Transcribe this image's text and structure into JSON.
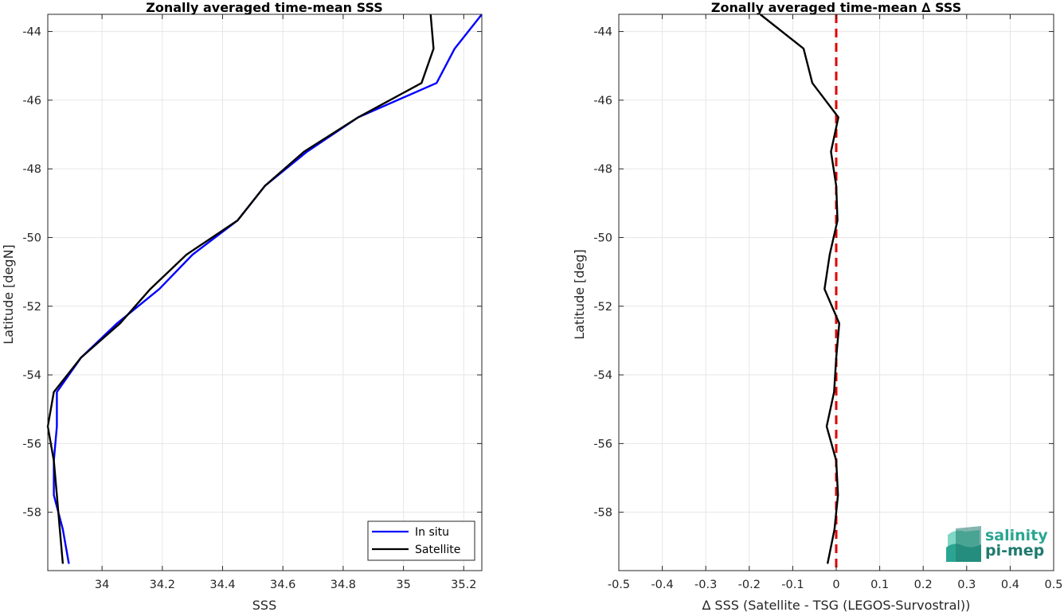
{
  "chart_data": [
    {
      "type": "line",
      "title": "Zonally averaged time-mean SSS",
      "xlabel": "SSS",
      "ylabel": "Latitude [degN]",
      "xlim": [
        33.82,
        35.26
      ],
      "ylim": [
        -59.7,
        -43.5
      ],
      "xticks": [
        34,
        34.2,
        34.4,
        34.6,
        34.8,
        35,
        35.2
      ],
      "xtick_labels": [
        "34",
        "34.2",
        "34.4",
        "34.6",
        "34.8",
        "35",
        "35.2"
      ],
      "yticks": [
        -44,
        -46,
        -48,
        -50,
        -52,
        -54,
        -56,
        -58
      ],
      "ytick_labels": [
        "-44",
        "-46",
        "-48",
        "-50",
        "-52",
        "-54",
        "-56",
        "-58"
      ],
      "grid": true,
      "legend": "bottom-right",
      "series": [
        {
          "name": "In situ",
          "color": "#0000ff",
          "x": [
            35.26,
            35.17,
            35.11,
            34.85,
            34.68,
            34.54,
            34.45,
            34.3,
            34.19,
            34.05,
            33.93,
            33.85,
            33.85,
            33.84,
            33.84,
            33.87,
            33.89
          ],
          "y": [
            -43.5,
            -44.5,
            -45.5,
            -46.5,
            -47.5,
            -48.5,
            -49.5,
            -50.5,
            -51.5,
            -52.5,
            -53.5,
            -54.5,
            -55.5,
            -56.5,
            -57.5,
            -58.5,
            -59.5
          ]
        },
        {
          "name": "Satellite",
          "color": "#000000",
          "x": [
            35.09,
            35.1,
            35.06,
            34.85,
            34.67,
            34.54,
            34.45,
            34.28,
            34.16,
            34.06,
            33.93,
            33.84,
            33.82,
            33.84,
            33.85,
            33.86,
            33.87
          ],
          "y": [
            -43.5,
            -44.5,
            -45.5,
            -46.5,
            -47.5,
            -48.5,
            -49.5,
            -50.5,
            -51.5,
            -52.5,
            -53.5,
            -54.5,
            -55.5,
            -56.5,
            -57.5,
            -58.5,
            -59.5
          ]
        }
      ]
    },
    {
      "type": "line",
      "title": "Zonally averaged time-mean ∆ SSS",
      "xlabel": "∆ SSS (Satellite - TSG (LEGOS-Survostral))",
      "ylabel": "Latitude [deg]",
      "xlim": [
        -0.5,
        0.5
      ],
      "ylim": [
        -59.7,
        -43.5
      ],
      "xticks": [
        -0.5,
        -0.4,
        -0.3,
        -0.2,
        -0.1,
        0,
        0.1,
        0.2,
        0.3,
        0.4,
        0.5
      ],
      "xtick_labels": [
        "-0.5",
        "-0.4",
        "-0.3",
        "-0.2",
        "-0.1",
        "0",
        "0.1",
        "0.2",
        "0.3",
        "0.4",
        "0.5"
      ],
      "yticks": [
        -44,
        -46,
        -48,
        -50,
        -52,
        -54,
        -56,
        -58
      ],
      "ytick_labels": [
        "-44",
        "-46",
        "-48",
        "-50",
        "-52",
        "-54",
        "-56",
        "-58"
      ],
      "grid": true,
      "reference_line": {
        "x": 0,
        "color": "#e00000",
        "style": "dashed"
      },
      "series": [
        {
          "color": "#000000",
          "x": [
            -0.175,
            -0.075,
            -0.055,
            0.005,
            -0.012,
            0,
            0.003,
            -0.015,
            -0.027,
            0.007,
            0.0,
            -0.005,
            -0.022,
            0.0,
            0.004,
            -0.004,
            -0.02
          ],
          "y": [
            -43.5,
            -44.5,
            -45.5,
            -46.5,
            -47.5,
            -48.5,
            -49.5,
            -50.5,
            -51.5,
            -52.5,
            -53.5,
            -54.5,
            -55.5,
            -56.5,
            -57.5,
            -58.5,
            -59.5
          ]
        }
      ]
    }
  ],
  "logo": {
    "line1": "salinity",
    "line2": "pi-mep",
    "color_light": "#7fd8c4",
    "color_dark": "#1f7a6e"
  }
}
